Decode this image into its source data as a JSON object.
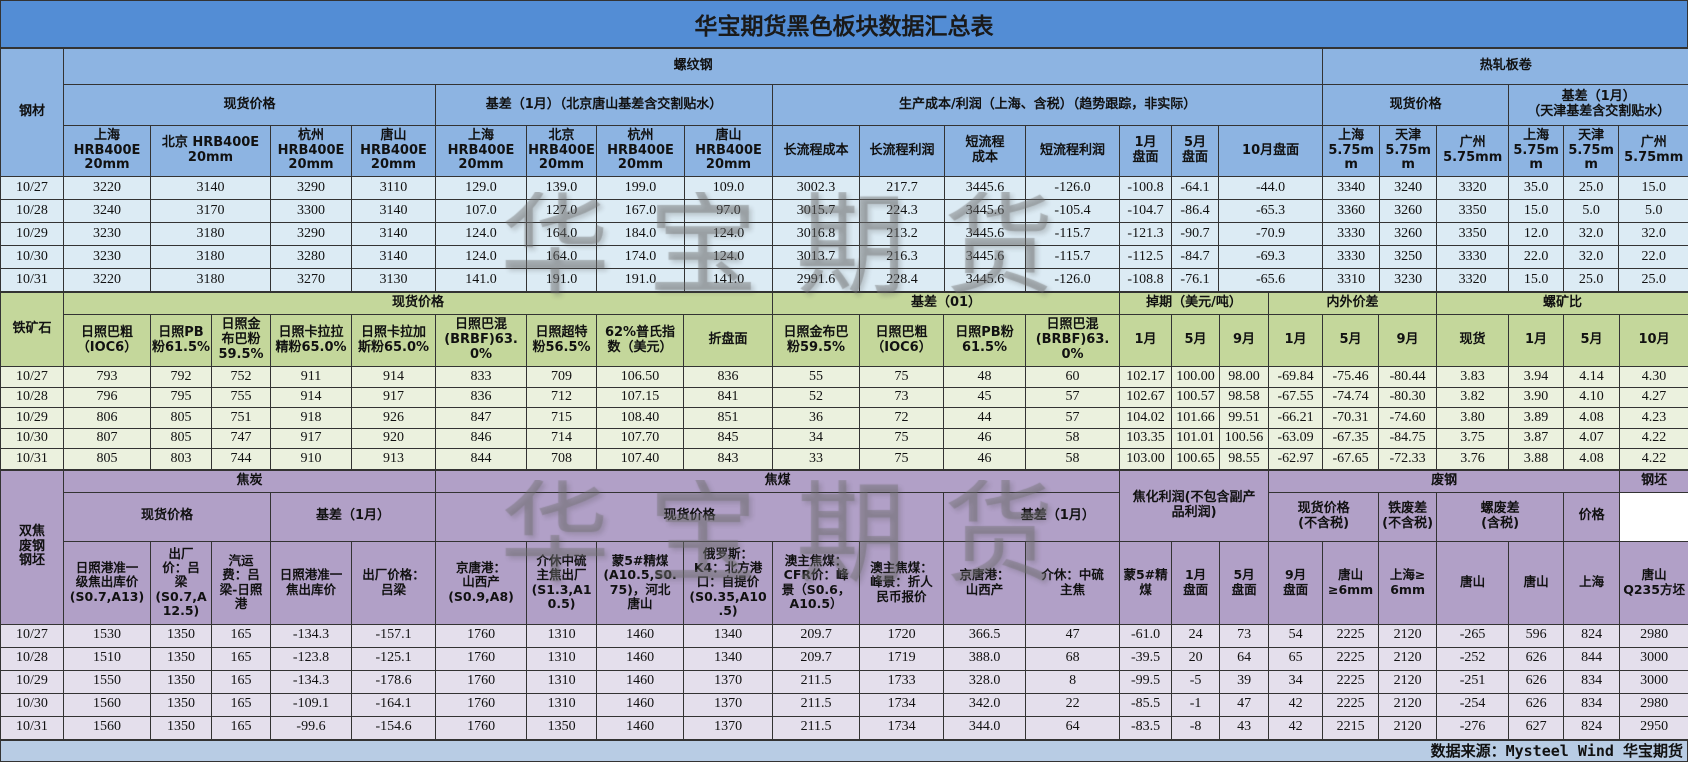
{
  "title": "华宝期货黑色板块数据汇总表",
  "watermark": "华宝期货",
  "source": "数据来源：Mysteel Wind 华宝期货",
  "colors": {
    "title_bar": "#538dd5",
    "rebar_header": "#8db4e2",
    "iron_header": "#c4d79b",
    "coal_header": "#b1a0c7",
    "footer": "#b8cce4"
  },
  "rebar": {
    "label": "钢材",
    "group": "螺纹钢",
    "hrc_group": "热轧板卷",
    "spot": "现货价格",
    "basis": "基差（1月）（北京唐山基差含交割贴水）",
    "cost": "生产成本/利润（上海、含税）（趋势跟踪，非实际）",
    "hrc_spot": "现货价格",
    "hrc_basis": "基差（1月）\n（天津基差含交割贴水）",
    "cols": [
      "上海\nHRB400E\n20mm",
      "北京 HRB400E\n20mm",
      "杭州\nHRB400E\n20mm",
      "唐山\nHRB400E\n20mm",
      "上海\nHRB400E\n20mm",
      "北京\nHRB400E\n20mm",
      "杭州\nHRB400E\n20mm",
      "唐山\nHRB400E\n20mm",
      "长流程成本",
      "长流程利润",
      "短流程\n成本",
      "短流程利润",
      "1月\n盘面",
      "5月\n盘面",
      "10月盘面",
      "上海\n5.75mm",
      "天津\n5.75mm",
      "广州\n5.75mm",
      "上海\n5.75mm",
      "天津\n5.75mm",
      "广州\n5.75mm"
    ],
    "rows": [
      {
        "date": "10/27",
        "values": [
          "3220",
          "3140",
          "3290",
          "3110",
          "129.0",
          "139.0",
          "199.0",
          "109.0",
          "3002.3",
          "217.7",
          "3445.6",
          "-126.0",
          "-100.8",
          "-64.1",
          "-44.0",
          "3340",
          "3240",
          "3320",
          "35.0",
          "25.0",
          "15.0"
        ]
      },
      {
        "date": "10/28",
        "values": [
          "3240",
          "3170",
          "3300",
          "3140",
          "107.0",
          "127.0",
          "167.0",
          "97.0",
          "3015.7",
          "224.3",
          "3445.6",
          "-105.4",
          "-104.7",
          "-86.4",
          "-65.3",
          "3360",
          "3260",
          "3350",
          "15.0",
          "5.0",
          "5.0"
        ]
      },
      {
        "date": "10/29",
        "values": [
          "3230",
          "3180",
          "3290",
          "3140",
          "124.0",
          "164.0",
          "184.0",
          "124.0",
          "3016.8",
          "213.2",
          "3445.6",
          "-115.7",
          "-121.3",
          "-90.7",
          "-70.9",
          "3330",
          "3260",
          "3350",
          "12.0",
          "32.0",
          "32.0"
        ]
      },
      {
        "date": "10/30",
        "values": [
          "3230",
          "3180",
          "3280",
          "3140",
          "124.0",
          "164.0",
          "174.0",
          "124.0",
          "3013.7",
          "216.3",
          "3445.6",
          "-115.7",
          "-112.5",
          "-84.7",
          "-69.3",
          "3330",
          "3250",
          "3330",
          "22.0",
          "32.0",
          "22.0"
        ]
      },
      {
        "date": "10/31",
        "values": [
          "3220",
          "3180",
          "3270",
          "3130",
          "141.0",
          "191.0",
          "191.0",
          "141.0",
          "2991.6",
          "228.4",
          "3445.6",
          "-126.0",
          "-108.8",
          "-76.1",
          "-65.6",
          "3310",
          "3230",
          "3320",
          "15.0",
          "25.0",
          "25.0"
        ]
      }
    ]
  },
  "iron": {
    "label": "铁矿石",
    "spot": "现货价格",
    "basis": "基差（01）",
    "swap": "掉期（美元/吨）",
    "spread": "内外价差",
    "ratio": "螺矿比",
    "cols": [
      "日照巴粗\n（IOC6）",
      "日照PB\n粉61.5%",
      "日照金\n布巴粉\n59.5%",
      "日照卡拉拉\n精粉65.0%",
      "日照卡拉加\n斯粉65.0%",
      "日照巴混\n(BRBF)63.0%",
      "日照超特\n粉56.5%",
      "62%普氏指\n数（美元）",
      "折盘面",
      "日照金布巴\n粉59.5%",
      "日照巴粗\n（IOC6）",
      "日照PB粉\n61.5%",
      "日照巴混\n(BRBF)63.0%",
      "1月",
      "5月",
      "9月",
      "1月",
      "5月",
      "9月",
      "现货",
      "1月",
      "5月",
      "10月"
    ],
    "rows": [
      {
        "date": "10/27",
        "values": [
          "793",
          "792",
          "752",
          "911",
          "914",
          "833",
          "709",
          "106.50",
          "836",
          "55",
          "75",
          "48",
          "60",
          "102.17",
          "100.00",
          "98.00",
          "-69.84",
          "-75.46",
          "-80.44",
          "3.83",
          "3.94",
          "4.14",
          "4.30"
        ]
      },
      {
        "date": "10/28",
        "values": [
          "796",
          "795",
          "755",
          "914",
          "917",
          "836",
          "712",
          "107.15",
          "841",
          "52",
          "73",
          "45",
          "57",
          "102.67",
          "100.57",
          "98.58",
          "-67.55",
          "-74.74",
          "-80.30",
          "3.82",
          "3.90",
          "4.10",
          "4.27"
        ]
      },
      {
        "date": "10/29",
        "values": [
          "806",
          "805",
          "751",
          "918",
          "926",
          "847",
          "715",
          "108.40",
          "851",
          "36",
          "72",
          "44",
          "57",
          "104.02",
          "101.66",
          "99.51",
          "-66.21",
          "-70.31",
          "-74.60",
          "3.80",
          "3.89",
          "4.08",
          "4.23"
        ]
      },
      {
        "date": "10/30",
        "values": [
          "807",
          "805",
          "747",
          "917",
          "920",
          "846",
          "714",
          "107.70",
          "845",
          "34",
          "75",
          "46",
          "58",
          "103.35",
          "101.01",
          "100.56",
          "-63.09",
          "-67.35",
          "-84.75",
          "3.75",
          "3.87",
          "4.07",
          "4.22"
        ]
      },
      {
        "date": "10/31",
        "values": [
          "805",
          "803",
          "744",
          "910",
          "913",
          "844",
          "708",
          "107.40",
          "843",
          "33",
          "75",
          "46",
          "58",
          "103.00",
          "100.65",
          "98.55",
          "-62.97",
          "-67.65",
          "-72.33",
          "3.76",
          "3.88",
          "4.08",
          "4.22"
        ]
      }
    ]
  },
  "coal": {
    "label": "双焦\n废钢\n钢坯",
    "coke": "焦炭",
    "coking_coal": "焦煤",
    "coking_profit": "焦化利润(不包含副产\n品利润)",
    "scrap": "废钢",
    "billet": "钢坯",
    "coke_spot": "现货价格",
    "coke_basis": "基差（1月）",
    "coal_spot": "现货价格",
    "coal_basis": "基差（1月）",
    "scrap_spot": "现货价格\n(不含税)",
    "iron_scrap": "铁废差\n(不含税)",
    "rebar_scrap": "螺废差\n(含税)",
    "billet_price": "价格",
    "cols": [
      "日照港准一\n级焦出库价\n(S0.7,A13)",
      "出厂\n价：吕\n梁\n(S0.7,A\n12.5)",
      "汽运\n费：吕\n梁-日照\n港",
      "日照港准一\n焦出库价",
      "出厂价格：\n吕梁",
      "京唐港：\n山西产\n(S0.9,A8)",
      "介休中硫\n主焦出厂\n(S1.3,A1\n0.5)",
      "蒙5#精煤\n(A10.5,S0.\n75)，河北\n唐山",
      "俄罗斯：\nK4：北方港\n口：自提价\n(S0.35,A10\n.5)",
      "澳主焦煤：\nCFR价：峰\n景（S0.6，\nA10.5）",
      "澳主焦煤：\n峰景：折人\n民币报价",
      "京唐港：\n山西产",
      "介休：中硫\n主焦",
      "蒙5#精\n煤",
      "1月\n盘面",
      "5月\n盘面",
      "9月\n盘面",
      "唐山\n≥6mm",
      "上海≥\n6mm",
      "唐山",
      "唐山",
      "上海",
      "唐山\nQ235方坯"
    ],
    "rows": [
      {
        "date": "10/27",
        "values": [
          "1530",
          "1350",
          "165",
          "-134.3",
          "-157.1",
          "1760",
          "1310",
          "1460",
          "1340",
          "209.7",
          "1720",
          "366.5",
          "47",
          "-61.0",
          "24",
          "73",
          "54",
          "2225",
          "2120",
          "-265",
          "596",
          "824",
          "2980"
        ]
      },
      {
        "date": "10/28",
        "values": [
          "1510",
          "1350",
          "165",
          "-123.8",
          "-125.1",
          "1760",
          "1310",
          "1460",
          "1340",
          "209.7",
          "1719",
          "388.0",
          "68",
          "-39.5",
          "20",
          "64",
          "65",
          "2225",
          "2120",
          "-252",
          "626",
          "844",
          "3000"
        ]
      },
      {
        "date": "10/29",
        "values": [
          "1550",
          "1350",
          "165",
          "-134.3",
          "-178.6",
          "1760",
          "1310",
          "1460",
          "1370",
          "211.5",
          "1733",
          "328.0",
          "8",
          "-99.5",
          "-5",
          "39",
          "34",
          "2225",
          "2120",
          "-251",
          "626",
          "834",
          "3000"
        ]
      },
      {
        "date": "10/30",
        "values": [
          "1560",
          "1350",
          "165",
          "-109.1",
          "-164.1",
          "1760",
          "1310",
          "1460",
          "1370",
          "211.5",
          "1734",
          "342.0",
          "22",
          "-85.5",
          "-1",
          "47",
          "42",
          "2225",
          "2120",
          "-254",
          "626",
          "834",
          "2980"
        ]
      },
      {
        "date": "10/31",
        "values": [
          "1560",
          "1350",
          "165",
          "-99.6",
          "-154.6",
          "1760",
          "1350",
          "1460",
          "1370",
          "211.5",
          "1734",
          "344.0",
          "64",
          "-83.5",
          "-8",
          "43",
          "42",
          "2215",
          "2120",
          "-276",
          "627",
          "824",
          "2950"
        ]
      }
    ]
  }
}
